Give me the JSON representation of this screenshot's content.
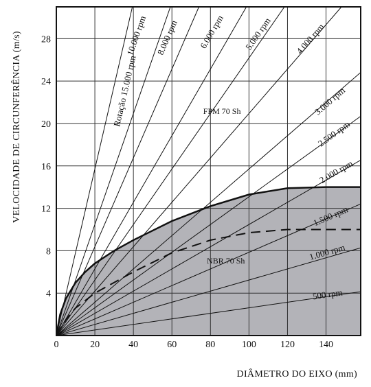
{
  "chart_data": {
    "type": "line",
    "xlabel": "DIÂMETRO DO EIXO (mm)",
    "ylabel": "VELOCIDADE DE CIRCUNFERÊNCIA (m/s)",
    "xlim": [
      0,
      158
    ],
    "ylim": [
      0,
      31
    ],
    "x_ticks": [
      0,
      20,
      40,
      60,
      80,
      100,
      120,
      140
    ],
    "x_tick_labels": [
      "0",
      "20",
      "40",
      "60",
      "80",
      "100",
      "120",
      "140"
    ],
    "y_ticks": [
      4,
      8,
      12,
      16,
      20,
      24,
      28
    ],
    "y_tick_labels": [
      "4",
      "8",
      "12",
      "16",
      "20",
      "24",
      "28"
    ],
    "grid": true,
    "rpm_lines": [
      {
        "label": "Rotação 15.000 rpm",
        "rpm": 15000
      },
      {
        "label": "10.000 rpm",
        "rpm": 10000
      },
      {
        "label": "8.000 rpm",
        "rpm": 8000
      },
      {
        "label": "6.000 rpm",
        "rpm": 6000
      },
      {
        "label": "5.000 rpm",
        "rpm": 5000
      },
      {
        "label": "4.000 rpm",
        "rpm": 4000
      },
      {
        "label": "3.000 rpm",
        "rpm": 3000
      },
      {
        "label": "2.500 rpm",
        "rpm": 2500
      },
      {
        "label": "2.000 rpm",
        "rpm": 2000
      },
      {
        "label": "1.500 rpm",
        "rpm": 1500
      },
      {
        "label": "1.000 rpm",
        "rpm": 1000
      },
      {
        "label": "500 rpm",
        "rpm": 500
      }
    ],
    "series": [
      {
        "name": "FPM 70 Sh",
        "style": "dashed",
        "x": [
          0,
          5,
          10,
          20,
          30,
          40,
          60,
          80,
          100,
          120,
          140,
          158
        ],
        "y": [
          0,
          1.5,
          2.6,
          4.0,
          5.0,
          6.0,
          7.8,
          9.0,
          9.7,
          10.0,
          10.0,
          10.0
        ]
      },
      {
        "name": "NBR 70 Sh",
        "style": "solid",
        "fill": "#b3b3b8",
        "x": [
          0,
          2,
          5,
          10,
          15,
          20,
          30,
          40,
          60,
          80,
          100,
          120,
          140,
          158
        ],
        "y": [
          0,
          2.0,
          3.5,
          5.0,
          6.0,
          6.8,
          8.0,
          9.0,
          10.8,
          12.2,
          13.3,
          13.9,
          14.0,
          14.0
        ]
      }
    ],
    "colors": {
      "shade": "#b3b3b8",
      "line": "#111111",
      "grid": "#333333"
    }
  }
}
